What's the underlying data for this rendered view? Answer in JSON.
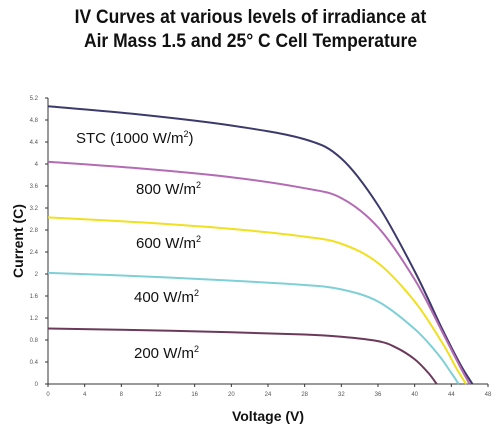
{
  "chart_data": {
    "type": "line",
    "title_line1": "IV Curves at various levels of irradiance at",
    "title_line2": "Air Mass 1.5 and 25° C Cell Temperature",
    "xlabel": "Voltage (V)",
    "ylabel": "Current (C)",
    "xlim": [
      0,
      48
    ],
    "ylim": [
      0,
      5.2
    ],
    "x_ticks": [
      "0",
      "4",
      "8",
      "12",
      "16",
      "20",
      "24",
      "28",
      "32",
      "36",
      "40",
      "44",
      "48"
    ],
    "y_ticks": [
      "0",
      "0.4",
      "0.8",
      "1.2",
      "1.6",
      "2",
      "2.4",
      "2.8",
      "3.2",
      "3.6",
      "4",
      "4.4",
      "4.8",
      "5.2"
    ],
    "grid": false,
    "series": [
      {
        "name": "STC (1000 W/m²)",
        "label_main": "STC (1000 W/m",
        "label_sup": "2",
        "label_tail": ")",
        "color": "#3c3a6b",
        "points": [
          [
            0,
            5.05
          ],
          [
            10,
            4.9
          ],
          [
            20,
            4.7
          ],
          [
            28,
            4.45
          ],
          [
            32,
            4.1
          ],
          [
            36,
            3.25
          ],
          [
            40,
            2.05
          ],
          [
            43,
            1.0
          ],
          [
            45,
            0.35
          ],
          [
            46.3,
            0
          ]
        ]
      },
      {
        "name": "800 W/m²",
        "label_main": "800 W/m",
        "label_sup": "2",
        "label_tail": "",
        "color": "#b36bb3",
        "points": [
          [
            0,
            4.04
          ],
          [
            10,
            3.92
          ],
          [
            20,
            3.76
          ],
          [
            28,
            3.56
          ],
          [
            32,
            3.38
          ],
          [
            36,
            2.85
          ],
          [
            40,
            1.9
          ],
          [
            43,
            0.95
          ],
          [
            45,
            0.3
          ],
          [
            46.0,
            0
          ]
        ]
      },
      {
        "name": "600 W/m²",
        "label_main": "600 W/m",
        "label_sup": "2",
        "label_tail": "",
        "color": "#f0e020",
        "points": [
          [
            0,
            3.03
          ],
          [
            10,
            2.94
          ],
          [
            20,
            2.82
          ],
          [
            28,
            2.68
          ],
          [
            32,
            2.55
          ],
          [
            36,
            2.2
          ],
          [
            40,
            1.5
          ],
          [
            43,
            0.75
          ],
          [
            44.5,
            0.3
          ],
          [
            45.6,
            0
          ]
        ]
      },
      {
        "name": "400 W/m²",
        "label_main": "400 W/m",
        "label_sup": "2",
        "label_tail": "",
        "color": "#7fd0d6",
        "points": [
          [
            0,
            2.02
          ],
          [
            10,
            1.96
          ],
          [
            20,
            1.88
          ],
          [
            28,
            1.8
          ],
          [
            32,
            1.72
          ],
          [
            36,
            1.5
          ],
          [
            40,
            1.0
          ],
          [
            42.5,
            0.55
          ],
          [
            44,
            0.2
          ],
          [
            44.8,
            0
          ]
        ]
      },
      {
        "name": "200 W/m²",
        "label_main": "200 W/m",
        "label_sup": "2",
        "label_tail": "",
        "color": "#6b3a5a",
        "points": [
          [
            0,
            1.01
          ],
          [
            10,
            0.98
          ],
          [
            20,
            0.94
          ],
          [
            28,
            0.9
          ],
          [
            32,
            0.86
          ],
          [
            36,
            0.78
          ],
          [
            38,
            0.66
          ],
          [
            40,
            0.45
          ],
          [
            41.5,
            0.2
          ],
          [
            42.4,
            0
          ]
        ]
      }
    ]
  }
}
